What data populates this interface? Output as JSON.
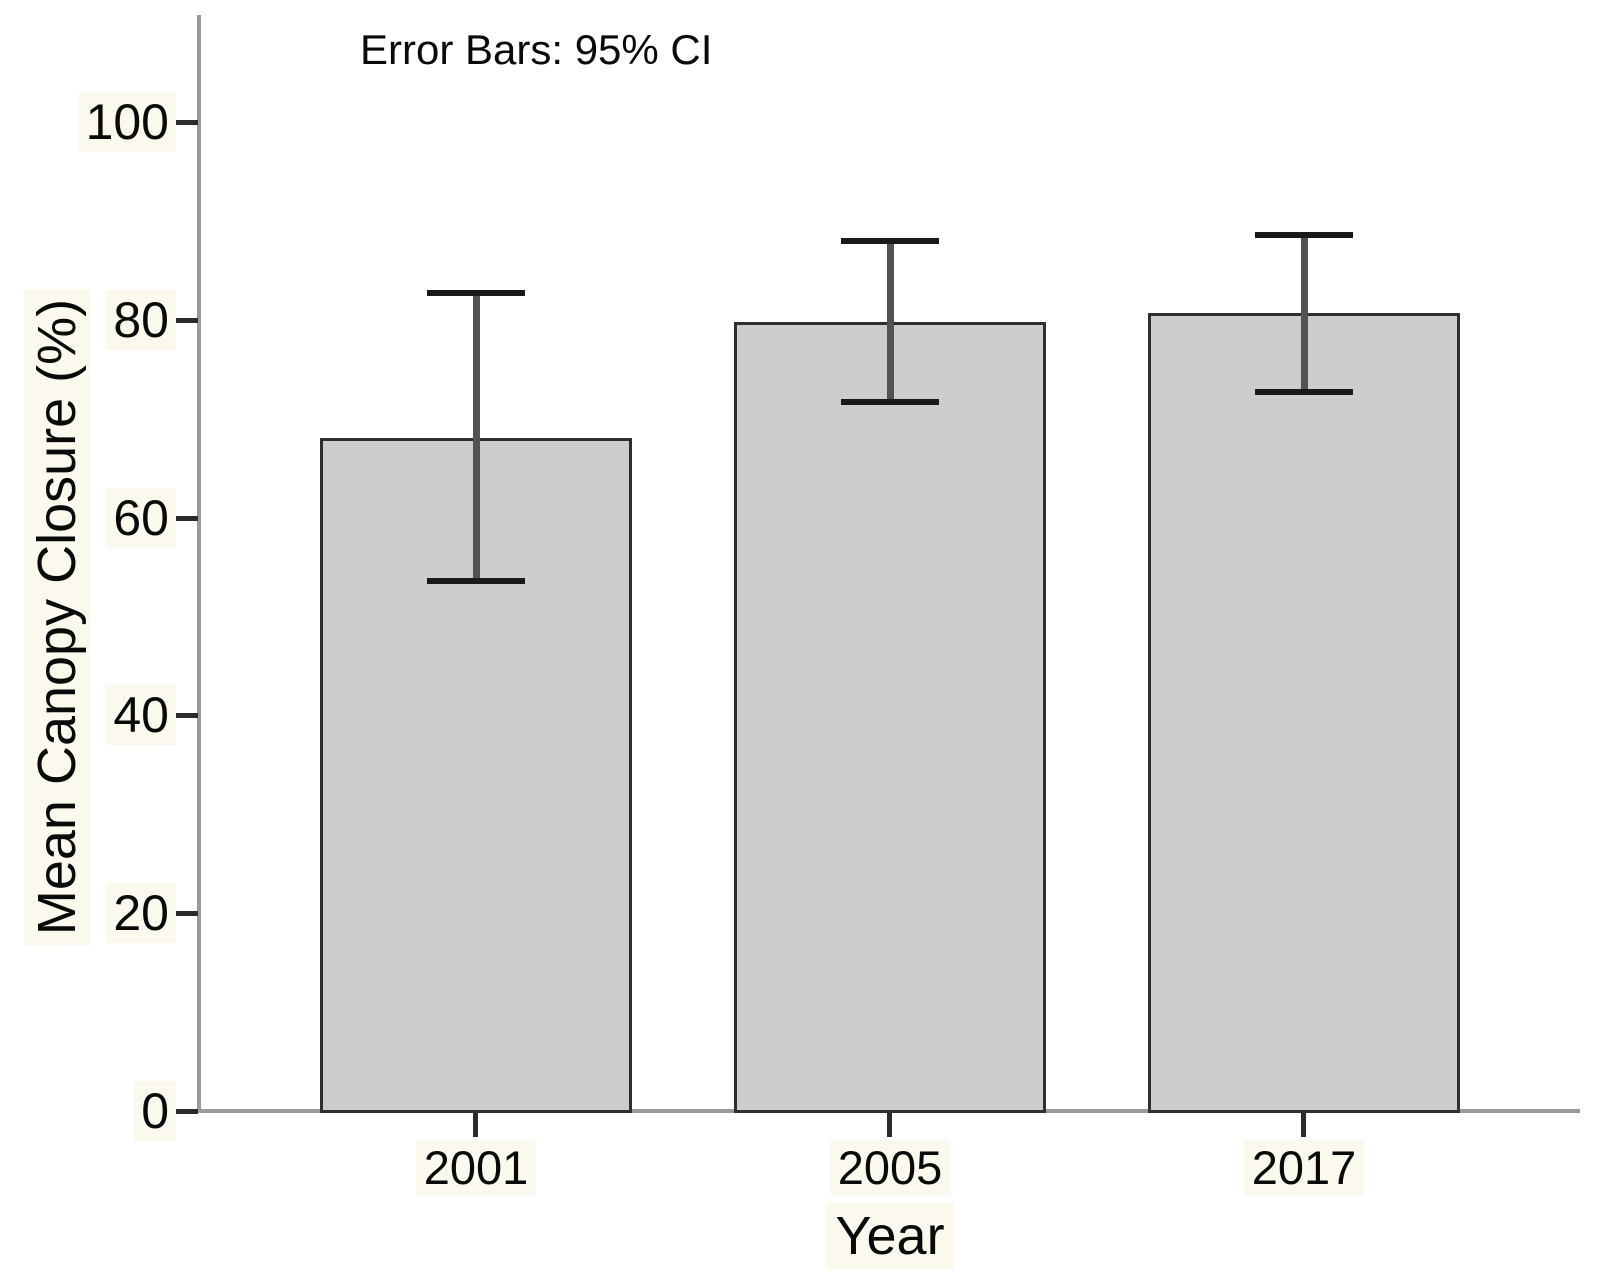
{
  "chart_data": {
    "type": "bar",
    "title": "",
    "annotation": "Error Bars: 95% CI",
    "xlabel": "Year",
    "ylabel": "Mean Canopy Closure (%)",
    "categories": [
      "2001",
      "2005",
      "2017"
    ],
    "series": [
      {
        "name": "Mean Canopy Closure (%)",
        "values": [
          68,
          79.8,
          80.7
        ],
        "ci_low": [
          53.6,
          71.7,
          72.7
        ],
        "ci_high": [
          82.7,
          88.0,
          88.6
        ]
      }
    ],
    "yticks": [
      0,
      20,
      40,
      60,
      80,
      100
    ],
    "ylim": [
      0,
      111
    ],
    "grid": false,
    "legend": null
  },
  "colors": {
    "bar_fill": "#cdcdcd",
    "bar_border": "#2f2f2f",
    "error_line": "#525252",
    "error_cap": "#1a1a1a",
    "axis_line": "#9a9a9a",
    "tick_mark": "#2b2b2b",
    "text": "#0a0a0a",
    "label_background": "#fbf8ee"
  }
}
